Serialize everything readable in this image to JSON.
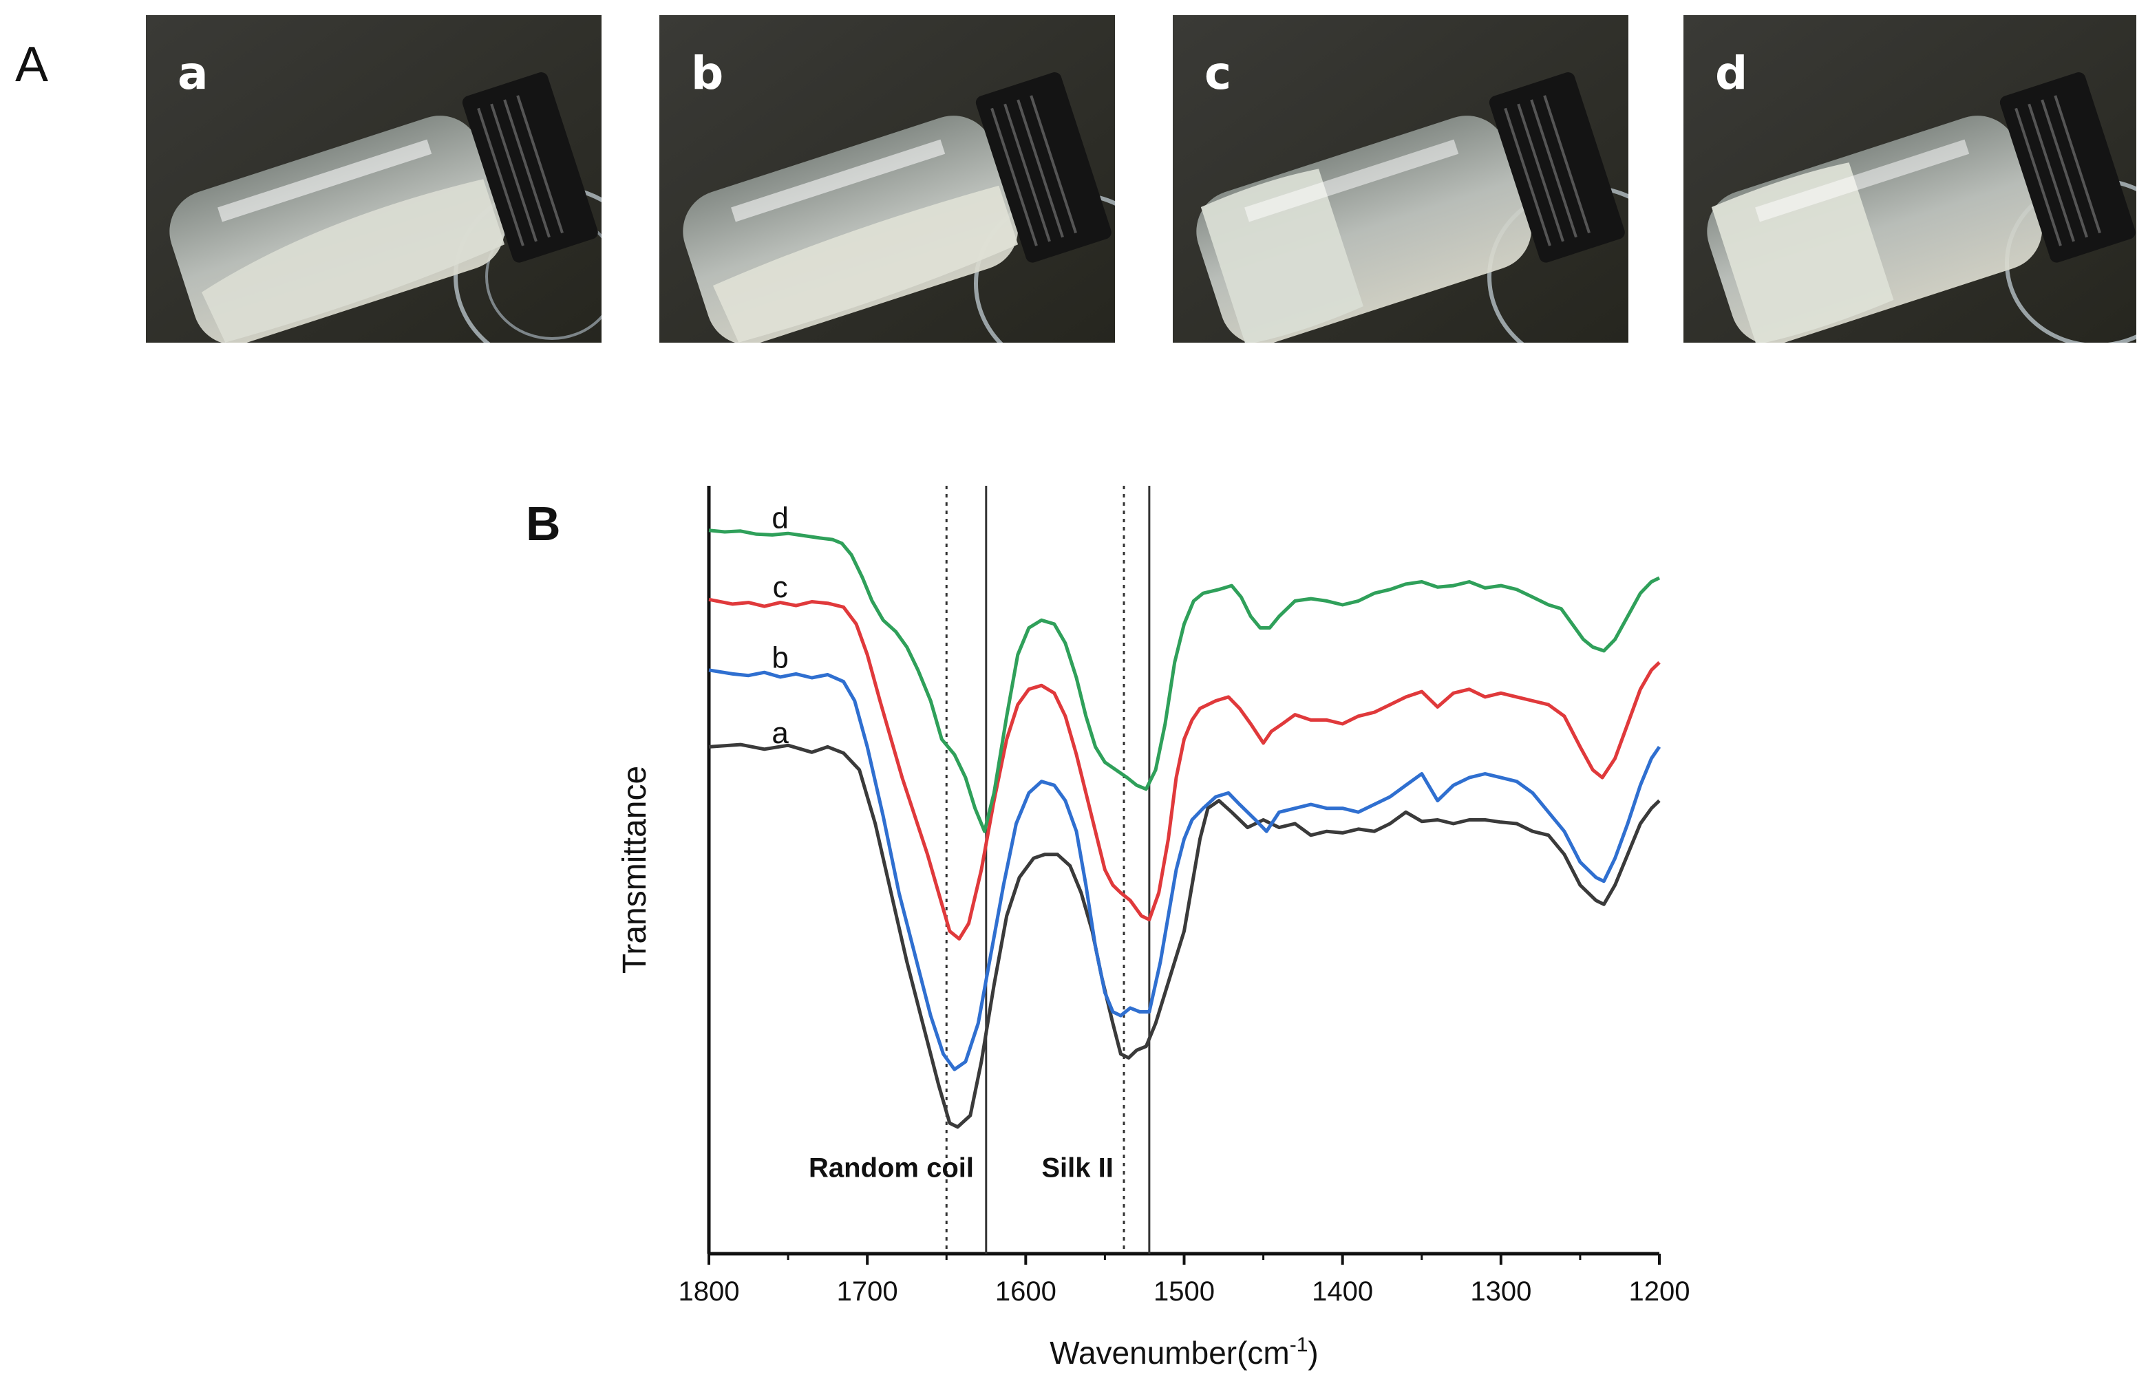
{
  "panel_a": {
    "letter": "A",
    "photos": [
      {
        "label": "a",
        "state": "flowing liquid"
      },
      {
        "label": "b",
        "state": "flowing liquid"
      },
      {
        "label": "c",
        "state": "gel"
      },
      {
        "label": "d",
        "state": "gel"
      }
    ]
  },
  "panel_b": {
    "letter": "B"
  },
  "chart_data": {
    "type": "line",
    "title": "",
    "xlabel": "Wavenumber(cm",
    "xlabel_superscript": "-1",
    "xlabel_suffix": ")",
    "ylabel": "Transmittance",
    "xlim": [
      1800,
      1200
    ],
    "x_reversed": true,
    "xticks": [
      1800,
      1700,
      1600,
      1500,
      1400,
      1300,
      1200
    ],
    "y_ticks_shown": false,
    "grid": false,
    "legend": "none",
    "reference_lines": [
      {
        "x": 1650,
        "style": "dotted"
      },
      {
        "x": 1625,
        "style": "solid"
      },
      {
        "x": 1538,
        "style": "dotted"
      },
      {
        "x": 1522,
        "style": "solid"
      }
    ],
    "annotations": [
      {
        "text": "Random coil",
        "x": 1737,
        "y": 10
      },
      {
        "text": "Silk II",
        "x": 1590,
        "y": 10
      }
    ],
    "series": [
      {
        "name": "a",
        "color": "#3a3a3a",
        "label_at": [
          1755,
          66.5
        ],
        "points": [
          [
            1800,
            66
          ],
          [
            1780,
            66.3
          ],
          [
            1765,
            65.7
          ],
          [
            1750,
            66.2
          ],
          [
            1735,
            65.3
          ],
          [
            1725,
            66
          ],
          [
            1715,
            65.2
          ],
          [
            1705,
            63
          ],
          [
            1695,
            56
          ],
          [
            1685,
            47
          ],
          [
            1675,
            38
          ],
          [
            1665,
            30
          ],
          [
            1655,
            22
          ],
          [
            1648,
            17
          ],
          [
            1643,
            16.5
          ],
          [
            1635,
            18
          ],
          [
            1628,
            25
          ],
          [
            1620,
            35
          ],
          [
            1612,
            44
          ],
          [
            1604,
            49
          ],
          [
            1595,
            51.5
          ],
          [
            1588,
            52
          ],
          [
            1580,
            52
          ],
          [
            1572,
            50.5
          ],
          [
            1565,
            47
          ],
          [
            1558,
            42
          ],
          [
            1552,
            36
          ],
          [
            1545,
            30
          ],
          [
            1540,
            26
          ],
          [
            1535,
            25.5
          ],
          [
            1530,
            26.5
          ],
          [
            1524,
            27
          ],
          [
            1518,
            30
          ],
          [
            1512,
            34
          ],
          [
            1506,
            38
          ],
          [
            1500,
            42
          ],
          [
            1495,
            48
          ],
          [
            1490,
            54
          ],
          [
            1485,
            58
          ],
          [
            1478,
            59
          ],
          [
            1470,
            57.5
          ],
          [
            1460,
            55.5
          ],
          [
            1450,
            56.5
          ],
          [
            1440,
            55.5
          ],
          [
            1430,
            56
          ],
          [
            1420,
            54.5
          ],
          [
            1410,
            55
          ],
          [
            1400,
            54.8
          ],
          [
            1390,
            55.3
          ],
          [
            1380,
            55
          ],
          [
            1370,
            56
          ],
          [
            1360,
            57.5
          ],
          [
            1350,
            56.3
          ],
          [
            1340,
            56.5
          ],
          [
            1330,
            56
          ],
          [
            1320,
            56.5
          ],
          [
            1310,
            56.5
          ],
          [
            1300,
            56.2
          ],
          [
            1290,
            56
          ],
          [
            1280,
            55
          ],
          [
            1270,
            54.5
          ],
          [
            1260,
            52
          ],
          [
            1250,
            48
          ],
          [
            1240,
            46
          ],
          [
            1235,
            45.5
          ],
          [
            1228,
            48
          ],
          [
            1220,
            52
          ],
          [
            1212,
            56
          ],
          [
            1205,
            58
          ],
          [
            1200,
            59
          ]
        ]
      },
      {
        "name": "b",
        "color": "#2f6fd0",
        "label_at": [
          1755,
          76.3
        ],
        "points": [
          [
            1800,
            76
          ],
          [
            1785,
            75.5
          ],
          [
            1775,
            75.3
          ],
          [
            1765,
            75.7
          ],
          [
            1755,
            75.1
          ],
          [
            1745,
            75.5
          ],
          [
            1735,
            75
          ],
          [
            1725,
            75.4
          ],
          [
            1715,
            74.5
          ],
          [
            1708,
            72
          ],
          [
            1700,
            66
          ],
          [
            1690,
            57
          ],
          [
            1680,
            47
          ],
          [
            1670,
            39
          ],
          [
            1660,
            31
          ],
          [
            1652,
            26
          ],
          [
            1645,
            24
          ],
          [
            1638,
            25
          ],
          [
            1630,
            30
          ],
          [
            1622,
            39
          ],
          [
            1614,
            48
          ],
          [
            1606,
            56
          ],
          [
            1598,
            60
          ],
          [
            1590,
            61.5
          ],
          [
            1582,
            61
          ],
          [
            1575,
            59
          ],
          [
            1568,
            55
          ],
          [
            1562,
            48
          ],
          [
            1556,
            40
          ],
          [
            1550,
            34
          ],
          [
            1545,
            31.5
          ],
          [
            1540,
            31
          ],
          [
            1534,
            32
          ],
          [
            1528,
            31.5
          ],
          [
            1522,
            31.5
          ],
          [
            1515,
            38
          ],
          [
            1510,
            44
          ],
          [
            1505,
            50
          ],
          [
            1500,
            54
          ],
          [
            1495,
            56.5
          ],
          [
            1488,
            58
          ],
          [
            1480,
            59.5
          ],
          [
            1472,
            60
          ],
          [
            1465,
            58.5
          ],
          [
            1455,
            56.5
          ],
          [
            1448,
            55
          ],
          [
            1440,
            57.5
          ],
          [
            1430,
            58
          ],
          [
            1420,
            58.5
          ],
          [
            1410,
            58
          ],
          [
            1400,
            58
          ],
          [
            1390,
            57.5
          ],
          [
            1380,
            58.5
          ],
          [
            1370,
            59.5
          ],
          [
            1360,
            61
          ],
          [
            1350,
            62.5
          ],
          [
            1340,
            59
          ],
          [
            1330,
            61
          ],
          [
            1320,
            62
          ],
          [
            1310,
            62.5
          ],
          [
            1300,
            62
          ],
          [
            1290,
            61.5
          ],
          [
            1280,
            60
          ],
          [
            1270,
            57.5
          ],
          [
            1260,
            55
          ],
          [
            1250,
            51
          ],
          [
            1240,
            49
          ],
          [
            1235,
            48.5
          ],
          [
            1228,
            51.5
          ],
          [
            1220,
            56
          ],
          [
            1212,
            61
          ],
          [
            1205,
            64.5
          ],
          [
            1200,
            66
          ]
        ]
      },
      {
        "name": "c",
        "color": "#e0393b",
        "label_at": [
          1755,
          85.5
        ],
        "points": [
          [
            1800,
            85.2
          ],
          [
            1785,
            84.6
          ],
          [
            1775,
            84.8
          ],
          [
            1765,
            84.3
          ],
          [
            1755,
            84.8
          ],
          [
            1745,
            84.4
          ],
          [
            1735,
            84.9
          ],
          [
            1725,
            84.7
          ],
          [
            1715,
            84.2
          ],
          [
            1707,
            82
          ],
          [
            1700,
            78
          ],
          [
            1692,
            72
          ],
          [
            1685,
            67
          ],
          [
            1678,
            62
          ],
          [
            1670,
            57
          ],
          [
            1662,
            52
          ],
          [
            1655,
            47
          ],
          [
            1648,
            42
          ],
          [
            1642,
            41
          ],
          [
            1636,
            43
          ],
          [
            1628,
            50
          ],
          [
            1620,
            59
          ],
          [
            1612,
            67
          ],
          [
            1605,
            71.5
          ],
          [
            1598,
            73.5
          ],
          [
            1590,
            74
          ],
          [
            1582,
            73
          ],
          [
            1575,
            70
          ],
          [
            1568,
            65
          ],
          [
            1562,
            60
          ],
          [
            1556,
            55
          ],
          [
            1550,
            50
          ],
          [
            1545,
            48
          ],
          [
            1540,
            47
          ],
          [
            1534,
            46
          ],
          [
            1527,
            44
          ],
          [
            1522,
            43.5
          ],
          [
            1516,
            47
          ],
          [
            1510,
            54
          ],
          [
            1505,
            62
          ],
          [
            1500,
            67
          ],
          [
            1495,
            69.5
          ],
          [
            1490,
            71
          ],
          [
            1480,
            72
          ],
          [
            1472,
            72.5
          ],
          [
            1465,
            71
          ],
          [
            1458,
            69
          ],
          [
            1450,
            66.5
          ],
          [
            1445,
            68
          ],
          [
            1438,
            69
          ],
          [
            1430,
            70.2
          ],
          [
            1420,
            69.5
          ],
          [
            1410,
            69.5
          ],
          [
            1400,
            69
          ],
          [
            1390,
            70
          ],
          [
            1380,
            70.5
          ],
          [
            1370,
            71.5
          ],
          [
            1360,
            72.5
          ],
          [
            1350,
            73.2
          ],
          [
            1340,
            71.2
          ],
          [
            1330,
            73
          ],
          [
            1320,
            73.5
          ],
          [
            1310,
            72.5
          ],
          [
            1300,
            73
          ],
          [
            1290,
            72.5
          ],
          [
            1280,
            72
          ],
          [
            1270,
            71.5
          ],
          [
            1260,
            70
          ],
          [
            1250,
            66
          ],
          [
            1242,
            63
          ],
          [
            1236,
            62
          ],
          [
            1228,
            64.5
          ],
          [
            1220,
            69
          ],
          [
            1212,
            73.5
          ],
          [
            1205,
            76
          ],
          [
            1200,
            77
          ]
        ]
      },
      {
        "name": "d",
        "color": "#2fa05a",
        "label_at": [
          1755,
          94.5
        ],
        "points": [
          [
            1800,
            94.2
          ],
          [
            1790,
            94
          ],
          [
            1780,
            94.1
          ],
          [
            1770,
            93.7
          ],
          [
            1760,
            93.6
          ],
          [
            1750,
            93.8
          ],
          [
            1740,
            93.5
          ],
          [
            1730,
            93.2
          ],
          [
            1722,
            93
          ],
          [
            1716,
            92.5
          ],
          [
            1710,
            91
          ],
          [
            1703,
            88
          ],
          [
            1697,
            85
          ],
          [
            1690,
            82.5
          ],
          [
            1682,
            81
          ],
          [
            1675,
            79
          ],
          [
            1668,
            76
          ],
          [
            1660,
            72
          ],
          [
            1653,
            67
          ],
          [
            1645,
            65
          ],
          [
            1638,
            62
          ],
          [
            1632,
            58
          ],
          [
            1626,
            55
          ],
          [
            1620,
            60
          ],
          [
            1612,
            70
          ],
          [
            1605,
            78
          ],
          [
            1598,
            81.5
          ],
          [
            1590,
            82.5
          ],
          [
            1582,
            82
          ],
          [
            1575,
            79.5
          ],
          [
            1568,
            75
          ],
          [
            1562,
            70
          ],
          [
            1556,
            66
          ],
          [
            1550,
            64
          ],
          [
            1543,
            63
          ],
          [
            1536,
            62
          ],
          [
            1530,
            61
          ],
          [
            1524,
            60.5
          ],
          [
            1518,
            63
          ],
          [
            1512,
            69
          ],
          [
            1506,
            77
          ],
          [
            1500,
            82
          ],
          [
            1494,
            85
          ],
          [
            1488,
            86
          ],
          [
            1478,
            86.5
          ],
          [
            1470,
            87
          ],
          [
            1464,
            85.5
          ],
          [
            1458,
            83
          ],
          [
            1452,
            81.5
          ],
          [
            1446,
            81.5
          ],
          [
            1440,
            83
          ],
          [
            1430,
            85
          ],
          [
            1420,
            85.3
          ],
          [
            1410,
            85
          ],
          [
            1400,
            84.5
          ],
          [
            1390,
            85
          ],
          [
            1380,
            86
          ],
          [
            1370,
            86.5
          ],
          [
            1360,
            87.2
          ],
          [
            1350,
            87.5
          ],
          [
            1340,
            86.8
          ],
          [
            1330,
            87
          ],
          [
            1320,
            87.5
          ],
          [
            1310,
            86.7
          ],
          [
            1300,
            87
          ],
          [
            1290,
            86.5
          ],
          [
            1280,
            85.5
          ],
          [
            1270,
            84.5
          ],
          [
            1262,
            84
          ],
          [
            1255,
            82
          ],
          [
            1248,
            80
          ],
          [
            1242,
            79
          ],
          [
            1235,
            78.5
          ],
          [
            1228,
            80
          ],
          [
            1220,
            83
          ],
          [
            1212,
            86
          ],
          [
            1205,
            87.5
          ],
          [
            1200,
            88
          ]
        ]
      }
    ]
  }
}
